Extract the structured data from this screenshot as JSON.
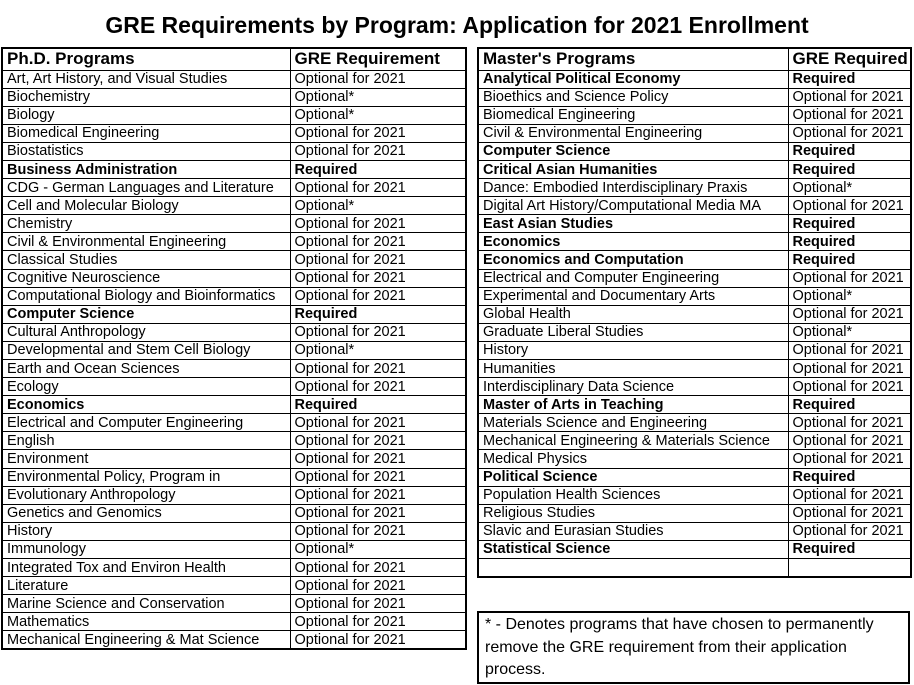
{
  "title": "GRE Requirements by Program: Application for 2021 Enrollment",
  "colors": {
    "text": "#000000",
    "background": "#ffffff",
    "border": "#000000"
  },
  "phd_table": {
    "headers": {
      "program": "Ph.D. Programs",
      "requirement": "GRE Requirement"
    },
    "rows": [
      {
        "program": "Art, Art History, and Visual Studies",
        "requirement": "Optional for 2021"
      },
      {
        "program": "Biochemistry",
        "requirement": "Optional*"
      },
      {
        "program": "Biology",
        "requirement": "Optional*"
      },
      {
        "program": "Biomedical Engineering",
        "requirement": "Optional for 2021"
      },
      {
        "program": "Biostatistics",
        "requirement": "Optional for 2021"
      },
      {
        "program": "Business Administration",
        "requirement": "Required"
      },
      {
        "program": "CDG - German Languages and Literature",
        "requirement": "Optional for 2021"
      },
      {
        "program": "Cell and Molecular Biology",
        "requirement": "Optional*"
      },
      {
        "program": "Chemistry",
        "requirement": "Optional for 2021"
      },
      {
        "program": "Civil & Environmental Engineering",
        "requirement": "Optional for 2021"
      },
      {
        "program": "Classical Studies",
        "requirement": "Optional for 2021"
      },
      {
        "program": "Cognitive Neuroscience",
        "requirement": "Optional for 2021"
      },
      {
        "program": "Computational Biology and Bioinformatics",
        "requirement": "Optional for 2021"
      },
      {
        "program": "Computer Science",
        "requirement": "Required"
      },
      {
        "program": "Cultural Anthropology",
        "requirement": "Optional for 2021"
      },
      {
        "program": "Developmental and Stem Cell Biology",
        "requirement": "Optional*"
      },
      {
        "program": "Earth and Ocean Sciences",
        "requirement": "Optional for 2021"
      },
      {
        "program": "Ecology",
        "requirement": "Optional for 2021"
      },
      {
        "program": "Economics",
        "requirement": "Required"
      },
      {
        "program": "Electrical and Computer Engineering",
        "requirement": "Optional for 2021"
      },
      {
        "program": "English",
        "requirement": "Optional for 2021"
      },
      {
        "program": "Environment",
        "requirement": "Optional for 2021"
      },
      {
        "program": "Environmental Policy, Program in",
        "requirement": "Optional for 2021"
      },
      {
        "program": "Evolutionary Anthropology",
        "requirement": "Optional for 2021"
      },
      {
        "program": "Genetics and Genomics",
        "requirement": "Optional for 2021"
      },
      {
        "program": "History",
        "requirement": "Optional for 2021"
      },
      {
        "program": "Immunology",
        "requirement": "Optional*"
      },
      {
        "program": "Integrated Tox and Environ Health",
        "requirement": "Optional for 2021"
      },
      {
        "program": "Literature",
        "requirement": "Optional for 2021"
      },
      {
        "program": "Marine Science and Conservation",
        "requirement": "Optional for 2021"
      },
      {
        "program": "Mathematics",
        "requirement": "Optional for 2021"
      },
      {
        "program": "Mechanical Engineering & Mat Science",
        "requirement": "Optional for 2021"
      }
    ]
  },
  "masters_table": {
    "headers": {
      "program": "Master's Programs",
      "requirement": "GRE Required"
    },
    "rows": [
      {
        "program": "Analytical Political Economy",
        "requirement": "Required"
      },
      {
        "program": "Bioethics and Science Policy",
        "requirement": "Optional for 2021"
      },
      {
        "program": "Biomedical Engineering",
        "requirement": "Optional for 2021"
      },
      {
        "program": "Civil & Environmental Engineering",
        "requirement": "Optional for 2021"
      },
      {
        "program": "Computer Science",
        "requirement": "Required"
      },
      {
        "program": "Critical Asian Humanities",
        "requirement": "Required"
      },
      {
        "program": "Dance: Embodied Interdisciplinary Praxis",
        "requirement": "Optional*"
      },
      {
        "program": "Digital Art History/Computational Media MA",
        "requirement": "Optional for 2021"
      },
      {
        "program": "East Asian Studies",
        "requirement": "Required"
      },
      {
        "program": "Economics",
        "requirement": "Required"
      },
      {
        "program": "Economics and Computation",
        "requirement": "Required"
      },
      {
        "program": "Electrical and Computer Engineering",
        "requirement": "Optional for 2021"
      },
      {
        "program": "Experimental and Documentary Arts",
        "requirement": "Optional*"
      },
      {
        "program": "Global Health",
        "requirement": "Optional for 2021"
      },
      {
        "program": "Graduate Liberal Studies",
        "requirement": "Optional*"
      },
      {
        "program": "History",
        "requirement": "Optional for 2021"
      },
      {
        "program": "Humanities",
        "requirement": "Optional for 2021"
      },
      {
        "program": "Interdisciplinary Data Science",
        "requirement": "Optional for 2021"
      },
      {
        "program": "Master of Arts in Teaching",
        "requirement": "Required"
      },
      {
        "program": "Materials Science and Engineering",
        "requirement": "Optional for 2021"
      },
      {
        "program": "Mechanical Engineering & Materials Science",
        "requirement": "Optional for 2021"
      },
      {
        "program": "Medical Physics",
        "requirement": "Optional for 2021"
      },
      {
        "program": "Political Science",
        "requirement": "Required"
      },
      {
        "program": "Population Health Sciences",
        "requirement": "Optional for 2021"
      },
      {
        "program": "Religious Studies",
        "requirement": "Optional for 2021"
      },
      {
        "program": "Slavic and Eurasian Studies",
        "requirement": "Optional for 2021"
      },
      {
        "program": "Statistical Science",
        "requirement": "Required"
      },
      {
        "program": "",
        "requirement": ""
      }
    ]
  },
  "footnote": "* - Denotes programs that have chosen to permanently remove the GRE requirement from their application process."
}
